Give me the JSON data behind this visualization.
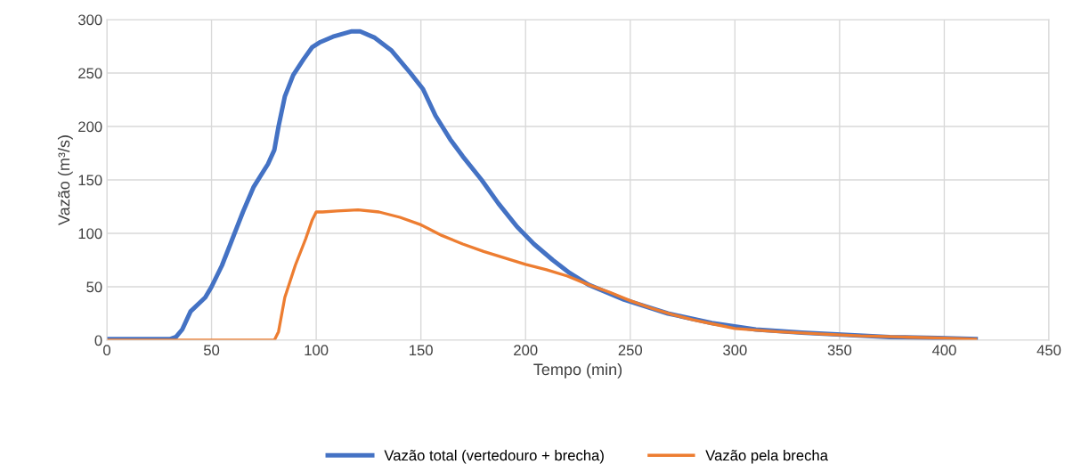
{
  "chart_data": {
    "type": "line",
    "xlabel": "Tempo (min)",
    "ylabel": "Vazão (m³/s)",
    "xlim": [
      0,
      450
    ],
    "xticks": [
      0,
      50,
      100,
      150,
      200,
      250,
      300,
      350,
      400,
      450
    ],
    "ylim": [
      0,
      300
    ],
    "yticks": [
      0,
      50,
      100,
      150,
      200,
      250,
      300
    ],
    "grid": true,
    "legend": "bottom",
    "marker": "none",
    "line_style": "solid",
    "series": [
      {
        "name": "Vazão total (vertedouro + brecha)",
        "color": "#4472c4",
        "x": [
          0,
          10,
          20,
          30,
          33,
          36,
          40,
          47,
          50,
          55,
          60,
          65,
          70,
          77,
          80,
          82,
          85,
          89,
          94,
          98,
          102,
          108,
          117,
          121,
          128,
          136,
          145,
          151,
          157,
          164,
          170,
          179,
          187,
          196,
          204,
          213,
          221,
          230,
          247,
          268,
          289,
          310,
          332,
          353,
          374,
          397,
          415
        ],
        "values": [
          1,
          1,
          1,
          1,
          3,
          10,
          27,
          40,
          50,
          70,
          95,
          120,
          143,
          165,
          178,
          200,
          228,
          248,
          263,
          274,
          279,
          284,
          289,
          289,
          283,
          271,
          250,
          235,
          210,
          188,
          172,
          150,
          128,
          106,
          90,
          75,
          63,
          52,
          38,
          25,
          16,
          10,
          7,
          5,
          3,
          2,
          1
        ]
      },
      {
        "name": "Vazão pela brecha",
        "color": "#ed7d31",
        "x": [
          0,
          20,
          40,
          60,
          78,
          80,
          82,
          85,
          90,
          95,
          98,
          100,
          103,
          110,
          120,
          130,
          140,
          150,
          160,
          170,
          180,
          190,
          200,
          210,
          220,
          230,
          240,
          250,
          260,
          270,
          280,
          290,
          300,
          320,
          340,
          360,
          380,
          400,
          415
        ],
        "values": [
          0,
          0,
          0,
          0,
          0,
          0,
          8,
          40,
          70,
          95,
          112,
          120,
          120,
          121,
          122,
          120,
          115,
          108,
          98,
          90,
          83,
          77,
          71,
          66,
          60,
          52,
          45,
          37,
          30,
          24,
          19,
          15,
          11,
          8,
          6,
          4,
          3,
          2,
          1
        ]
      }
    ]
  }
}
